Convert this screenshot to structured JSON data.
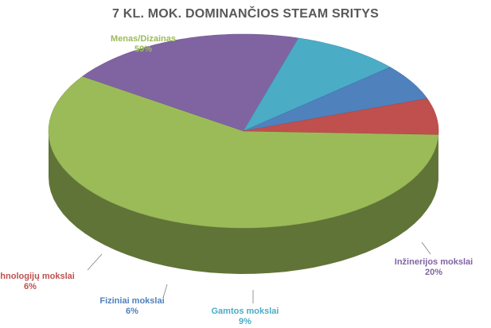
{
  "chart_data": {
    "type": "pie",
    "title": "7 KL. MOK.  DOMINANČIOS STEAM SRITYS",
    "slices": [
      {
        "label": "Menas/Dizainas",
        "value": 59,
        "display": "59%",
        "color": "#9BBB59"
      },
      {
        "label": "Inžinerijos  mokslai",
        "value": 20,
        "display": "20%",
        "color": "#8064A2"
      },
      {
        "label": "Gamtos mokslai",
        "value": 9,
        "display": "9%",
        "color": "#4BACC6"
      },
      {
        "label": "Fiziniai mokslai",
        "value": 6,
        "display": "6%",
        "color": "#4F81BD"
      },
      {
        "label": "Technologijų mokslai",
        "value": 6,
        "display": "6%",
        "color": "#C0504D"
      }
    ],
    "style": "3d-exploded",
    "legend": "none"
  }
}
